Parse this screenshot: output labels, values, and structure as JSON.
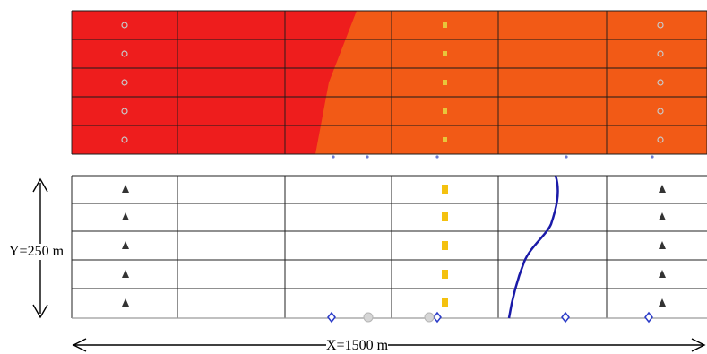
{
  "labels": {
    "y_dimension": "Y=250 m",
    "x_dimension": "X=1500 m"
  },
  "colors": {
    "red": "#ee1d1d",
    "orange_red": "#f25a16",
    "orange": "#f8a11a",
    "yellow": "#f6ee22",
    "yellow_green": "#b6ec1d",
    "green": "#3fd21c",
    "light_green": "#5ff08a",
    "aqua": "#2cf0d8",
    "sky": "#1fb8f2",
    "blue": "#1a4df0",
    "deep_blue": "#0c1ce0",
    "well_dark": "#333333",
    "well_yellow": "#f4c10f",
    "front_line": "#1a1aa8",
    "diamond_blue": "#2a3ac8"
  },
  "legend": []
}
